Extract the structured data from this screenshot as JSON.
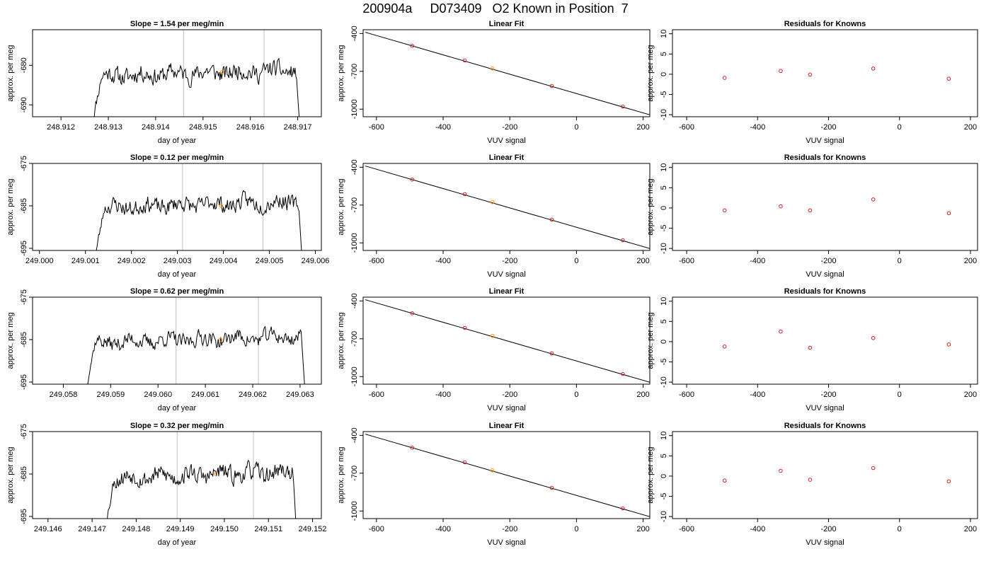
{
  "title": "200904a     D073409   O2 Known in Position  7",
  "colors": {
    "line": "#000000",
    "known_point": "#cc2222",
    "highlight": "#ff9900",
    "vline": "#c8c8c8"
  },
  "rows": [
    {
      "slope_title": "Slope =  1.54  per meg/min",
      "chart_data": [
        {
          "type": "line",
          "title": "Slope =  1.54  per meg/min",
          "xlabel": "day of year",
          "ylabel": "approx. per meg",
          "xlim": [
            248.9114,
            248.9175
          ],
          "ylim": [
            -693,
            -671
          ],
          "xticks": [
            "248.912",
            "248.913",
            "248.914",
            "248.915",
            "248.916",
            "248.917"
          ],
          "xtick_values": [
            248.912,
            248.913,
            248.914,
            248.915,
            248.916,
            248.917
          ],
          "yticks": [
            "-690",
            "-680"
          ],
          "ytick_values": [
            -690,
            -680
          ],
          "series_range": [
            248.91265,
            248.91708
          ],
          "window": [
            248.91459,
            248.91629
          ],
          "highlight_point": {
            "x": 248.9154,
            "y": -681.7
          },
          "noise_seed": 11,
          "level": -682.0,
          "amp": 2.2
        },
        {
          "type": "scatter",
          "title": "Linear Fit",
          "xlabel": "VUV signal",
          "ylabel": "approx. per meg",
          "xlim": [
            -640,
            220
          ],
          "ylim": [
            -1060,
            -370
          ],
          "xticks": [
            "-600",
            "-400",
            "-200",
            "0",
            "200"
          ],
          "xtick_values": [
            -600,
            -400,
            -200,
            0,
            200
          ],
          "yticks": [
            "-400",
            "-700",
            "-1000"
          ],
          "ytick_values": [
            -400,
            -700,
            -1000
          ],
          "fit_line": {
            "x": [
              -634,
              220
            ],
            "y": [
              -390,
              -1045
            ]
          },
          "points": [
            {
              "x": -493,
              "y": -498
            },
            {
              "x": -335,
              "y": -614
            },
            {
              "x": -252,
              "y": -677
            },
            {
              "x": -74,
              "y": -816
            },
            {
              "x": 139,
              "y": -979
            }
          ],
          "highlight_index": 2
        },
        {
          "type": "scatter",
          "title": "Residuals for Knowns",
          "xlabel": "VUV signal",
          "ylabel": "approx. per meg",
          "xlim": [
            -640,
            220
          ],
          "ylim": [
            -10.5,
            11
          ],
          "xticks": [
            "-600",
            "-400",
            "-200",
            "0",
            "200"
          ],
          "xtick_values": [
            -600,
            -400,
            -200,
            0,
            200
          ],
          "yticks": [
            "-10",
            "-5",
            "0",
            "5",
            "10"
          ],
          "ytick_values": [
            -10,
            -5,
            0,
            5,
            10
          ],
          "points": [
            {
              "x": -493,
              "y": -0.9
            },
            {
              "x": -335,
              "y": 0.8
            },
            {
              "x": -252,
              "y": -0.1
            },
            {
              "x": -74,
              "y": 1.4
            },
            {
              "x": 139,
              "y": -1.1
            }
          ]
        }
      ]
    },
    {
      "slope_title": "Slope =  0.12  per meg/min",
      "chart_data": [
        {
          "type": "line",
          "title": "Slope =  0.12  per meg/min",
          "xlabel": "day of year",
          "ylabel": "approx. per meg",
          "xlim": [
            248.99985,
            249.00613
          ],
          "ylim": [
            -695.5,
            -675
          ],
          "xticks": [
            "249.000",
            "249.001",
            "249.002",
            "249.003",
            "249.004",
            "249.005",
            "249.006"
          ],
          "xtick_values": [
            249.0,
            249.001,
            249.002,
            249.003,
            249.004,
            249.005,
            249.006
          ],
          "yticks": [
            "-695",
            "-685",
            "-675"
          ],
          "ytick_values": [
            -695,
            -685,
            -675
          ],
          "series_range": [
            249.0012,
            249.00575
          ],
          "window": [
            249.00311,
            249.00486
          ],
          "highlight_point": {
            "x": 249.00395,
            "y": -685.0
          },
          "noise_seed": 23,
          "level": -684.7,
          "amp": 1.9
        },
        {
          "type": "scatter",
          "title": "Linear Fit",
          "xlabel": "VUV signal",
          "ylabel": "approx. per meg",
          "xlim": [
            -640,
            220
          ],
          "ylim": [
            -1060,
            -370
          ],
          "xticks": [
            "-600",
            "-400",
            "-200",
            "0",
            "200"
          ],
          "xtick_values": [
            -600,
            -400,
            -200,
            0,
            200
          ],
          "yticks": [
            "-400",
            "-700",
            "-1000"
          ],
          "ytick_values": [
            -400,
            -700,
            -1000
          ],
          "fit_line": {
            "x": [
              -634,
              220
            ],
            "y": [
              -390,
              -1045
            ]
          },
          "points": [
            {
              "x": -493,
              "y": -498
            },
            {
              "x": -335,
              "y": -614
            },
            {
              "x": -252,
              "y": -677
            },
            {
              "x": -74,
              "y": -816
            },
            {
              "x": 139,
              "y": -979
            }
          ],
          "highlight_index": 2
        },
        {
          "type": "scatter",
          "title": "Residuals for Knowns",
          "xlabel": "VUV signal",
          "ylabel": "approx. per meg",
          "xlim": [
            -640,
            220
          ],
          "ylim": [
            -10.5,
            11
          ],
          "xticks": [
            "-600",
            "-400",
            "-200",
            "0",
            "200"
          ],
          "xtick_values": [
            -600,
            -400,
            -200,
            0,
            200
          ],
          "yticks": [
            "-10",
            "-5",
            "0",
            "5",
            "10"
          ],
          "ytick_values": [
            -10,
            -5,
            0,
            5,
            10
          ],
          "points": [
            {
              "x": -493,
              "y": -0.6
            },
            {
              "x": -335,
              "y": 0.4
            },
            {
              "x": -252,
              "y": -0.6
            },
            {
              "x": -74,
              "y": 2.1
            },
            {
              "x": 139,
              "y": -1.3
            }
          ]
        }
      ]
    },
    {
      "slope_title": "Slope =  0.62  per meg/min",
      "chart_data": [
        {
          "type": "line",
          "title": "Slope =  0.62  per meg/min",
          "xlabel": "day of year",
          "ylabel": "approx. per meg",
          "xlim": [
            249.05735,
            249.06345
          ],
          "ylim": [
            -695.5,
            -675
          ],
          "xticks": [
            "249.058",
            "249.059",
            "249.060",
            "249.061",
            "249.062",
            "249.063"
          ],
          "xtick_values": [
            249.058,
            249.059,
            249.06,
            249.061,
            249.062,
            249.063
          ],
          "yticks": [
            "-695",
            "-685",
            "-675"
          ],
          "ytick_values": [
            -695,
            -685,
            -675
          ],
          "series_range": [
            249.05845,
            249.06315
          ],
          "window": [
            249.06038,
            249.06212
          ],
          "highlight_point": {
            "x": 249.06132,
            "y": -685.0
          },
          "noise_seed": 37,
          "level": -685.0,
          "amp": 1.8
        },
        {
          "type": "scatter",
          "title": "Linear Fit",
          "xlabel": "VUV signal",
          "ylabel": "approx. per meg",
          "xlim": [
            -640,
            220
          ],
          "ylim": [
            -1060,
            -370
          ],
          "xticks": [
            "-600",
            "-400",
            "-200",
            "0",
            "200"
          ],
          "xtick_values": [
            -600,
            -400,
            -200,
            0,
            200
          ],
          "yticks": [
            "-400",
            "-700",
            "-1000"
          ],
          "ytick_values": [
            -400,
            -700,
            -1000
          ],
          "fit_line": {
            "x": [
              -634,
              220
            ],
            "y": [
              -390,
              -1045
            ]
          },
          "points": [
            {
              "x": -493,
              "y": -498
            },
            {
              "x": -335,
              "y": -614
            },
            {
              "x": -252,
              "y": -677
            },
            {
              "x": -74,
              "y": -816
            },
            {
              "x": 139,
              "y": -979
            }
          ],
          "highlight_index": 2
        },
        {
          "type": "scatter",
          "title": "Residuals for Knowns",
          "xlabel": "VUV signal",
          "ylabel": "approx. per meg",
          "xlim": [
            -640,
            220
          ],
          "ylim": [
            -10.5,
            11
          ],
          "xticks": [
            "-600",
            "-400",
            "-200",
            "0",
            "200"
          ],
          "xtick_values": [
            -600,
            -400,
            -200,
            0,
            200
          ],
          "yticks": [
            "-10",
            "-5",
            "0",
            "5",
            "10"
          ],
          "ytick_values": [
            -10,
            -5,
            0,
            5,
            10
          ],
          "points": [
            {
              "x": -493,
              "y": -1.2
            },
            {
              "x": -335,
              "y": 2.5
            },
            {
              "x": -252,
              "y": -1.5
            },
            {
              "x": -74,
              "y": 0.9
            },
            {
              "x": 139,
              "y": -0.7
            }
          ]
        }
      ]
    },
    {
      "slope_title": "Slope =  0.32  per meg/min",
      "chart_data": [
        {
          "type": "line",
          "title": "Slope =  0.32  per meg/min",
          "xlabel": "day of year",
          "ylabel": "approx. per meg",
          "xlim": [
            249.14565,
            249.1522
          ],
          "ylim": [
            -695.5,
            -675
          ],
          "xticks": [
            "249.146",
            "249.147",
            "249.148",
            "249.149",
            "249.150",
            "249.151",
            "249.152"
          ],
          "xtick_values": [
            249.146,
            249.147,
            249.148,
            249.149,
            249.15,
            249.151,
            249.152
          ],
          "yticks": [
            "-695",
            "-685",
            "-675"
          ],
          "ytick_values": [
            -695,
            -685,
            -675
          ],
          "series_range": [
            249.1473,
            249.15167
          ],
          "window": [
            249.14893,
            249.15066
          ],
          "highlight_point": {
            "x": 249.1498,
            "y": -685.0
          },
          "noise_seed": 53,
          "level": -685.2,
          "amp": 2.0
        },
        {
          "type": "scatter",
          "title": "Linear Fit",
          "xlabel": "VUV signal",
          "ylabel": "approx. per meg",
          "xlim": [
            -640,
            220
          ],
          "ylim": [
            -1060,
            -370
          ],
          "xticks": [
            "-600",
            "-400",
            "-200",
            "0",
            "200"
          ],
          "xtick_values": [
            -600,
            -400,
            -200,
            0,
            200
          ],
          "yticks": [
            "-400",
            "-700",
            "-1000"
          ],
          "ytick_values": [
            -400,
            -700,
            -1000
          ],
          "fit_line": {
            "x": [
              -634,
              220
            ],
            "y": [
              -390,
              -1045
            ]
          },
          "points": [
            {
              "x": -493,
              "y": -498
            },
            {
              "x": -335,
              "y": -614
            },
            {
              "x": -252,
              "y": -677
            },
            {
              "x": -74,
              "y": -816
            },
            {
              "x": 139,
              "y": -979
            }
          ],
          "highlight_index": 2
        },
        {
          "type": "scatter",
          "title": "Residuals for Knowns",
          "xlabel": "VUV signal",
          "ylabel": "approx. per meg",
          "xlim": [
            -640,
            220
          ],
          "ylim": [
            -10.5,
            11
          ],
          "xticks": [
            "-600",
            "-400",
            "-200",
            "0",
            "200"
          ],
          "xtick_values": [
            -600,
            -400,
            -200,
            0,
            200
          ],
          "yticks": [
            "-10",
            "-5",
            "0",
            "5",
            "10"
          ],
          "ytick_values": [
            -10,
            -5,
            0,
            5,
            10
          ],
          "points": [
            {
              "x": -493,
              "y": -1.1
            },
            {
              "x": -335,
              "y": 1.3
            },
            {
              "x": -252,
              "y": -0.9
            },
            {
              "x": -74,
              "y": 2.0
            },
            {
              "x": 139,
              "y": -1.3
            }
          ]
        }
      ]
    }
  ]
}
